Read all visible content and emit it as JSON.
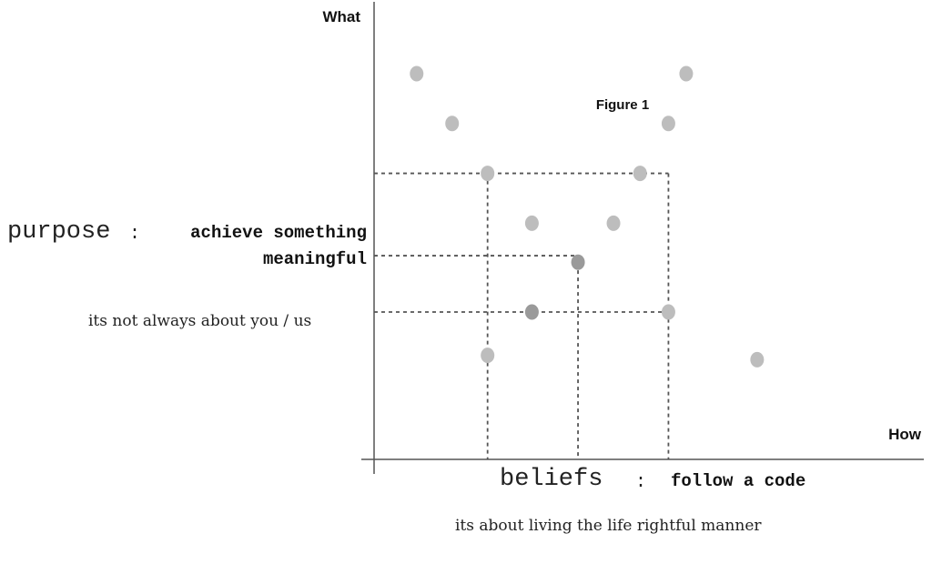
{
  "chart_data": {
    "type": "scatter",
    "title": "Figure 1",
    "xlabel": "How",
    "ylabel": "What",
    "grid": false,
    "legend": "none",
    "points": [
      {
        "x": 1.2,
        "y": 8.9
      },
      {
        "x": 2.2,
        "y": 7.75
      },
      {
        "x": 3.2,
        "y": 6.6
      },
      {
        "x": 4.45,
        "y": 5.45
      },
      {
        "x": 5.75,
        "y": 4.55
      },
      {
        "x": 4.45,
        "y": 3.4
      },
      {
        "x": 3.2,
        "y": 2.4
      },
      {
        "x": 7.5,
        "y": 6.6
      },
      {
        "x": 6.75,
        "y": 5.45
      },
      {
        "x": 8.3,
        "y": 7.75
      },
      {
        "x": 8.8,
        "y": 8.9
      },
      {
        "x": 8.3,
        "y": 3.4
      },
      {
        "x": 10.8,
        "y": 2.3
      }
    ],
    "dark_points": [
      {
        "x": 5.75,
        "y": 4.55
      },
      {
        "x": 4.45,
        "y": 3.4
      }
    ],
    "reference_lines": [
      {
        "from": [
          0,
          6.6
        ],
        "to": [
          8.3,
          6.6
        ]
      },
      {
        "from": [
          8.3,
          6.6
        ],
        "to": [
          8.3,
          0
        ]
      },
      {
        "from": [
          3.2,
          6.6
        ],
        "to": [
          3.2,
          0
        ]
      },
      {
        "from": [
          0,
          4.7
        ],
        "to": [
          5.75,
          4.7
        ]
      },
      {
        "from": [
          5.75,
          4.7
        ],
        "to": [
          5.75,
          0
        ]
      },
      {
        "from": [
          0,
          3.4
        ],
        "to": [
          8.3,
          3.4
        ]
      }
    ],
    "xlim": [
      0,
      15.5
    ],
    "ylim": [
      0,
      10.6
    ],
    "colors": {
      "point": "#bdbdbd",
      "point_dark": "#9a9a9a",
      "axis": "#555555",
      "dash": "#555555"
    }
  },
  "annotations": {
    "purpose_word": "purpose",
    "purpose_colon": ":",
    "purpose_line1": "achieve something",
    "purpose_line2": "meaningful",
    "purpose_note": "its not always about you / us",
    "beliefs_word": "beliefs",
    "beliefs_colon": ":",
    "beliefs_bold": "follow a code",
    "beliefs_note": "its about living the life rightful manner"
  }
}
